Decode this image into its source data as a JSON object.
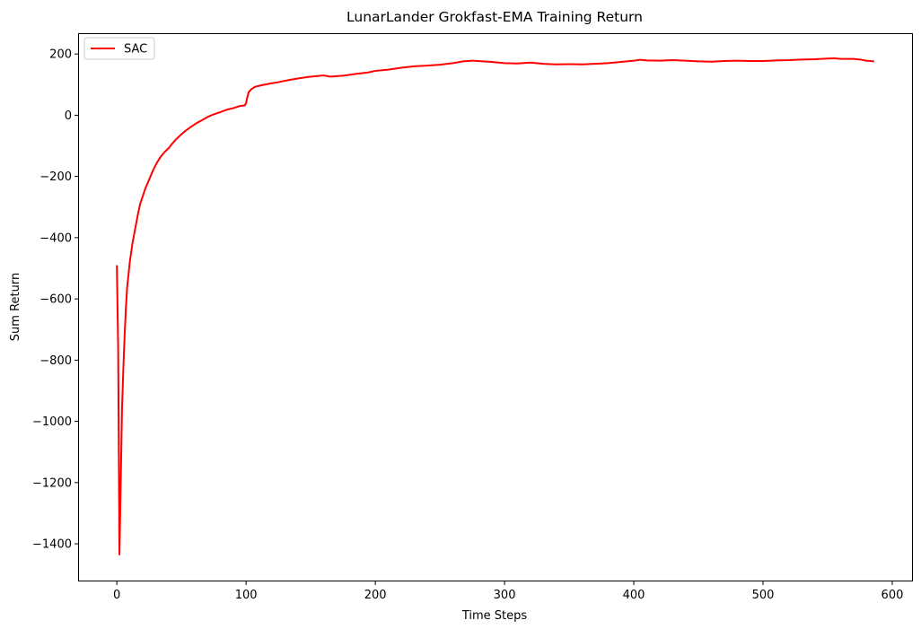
{
  "chart_data": {
    "type": "line",
    "title": "LunarLander Grokfast-EMA Training Return",
    "xlabel": "Time Steps",
    "ylabel": "Sum Return",
    "xlim": [
      -29.3,
      615.3
    ],
    "ylim": [
      -1520,
      265
    ],
    "xticks": [
      0,
      100,
      200,
      300,
      400,
      500,
      600
    ],
    "yticks": [
      -1400,
      -1200,
      -1000,
      -800,
      -600,
      -400,
      -200,
      0,
      200
    ],
    "grid": false,
    "legend": {
      "placement": "top-left"
    },
    "series": [
      {
        "name": "SAC",
        "color": "#ff0000",
        "points": [
          [
            0,
            -490
          ],
          [
            1,
            -760
          ],
          [
            2,
            -1435
          ],
          [
            3,
            -1200
          ],
          [
            4,
            -960
          ],
          [
            5,
            -830
          ],
          [
            6,
            -720
          ],
          [
            7,
            -630
          ],
          [
            8,
            -560
          ],
          [
            10,
            -480
          ],
          [
            12,
            -420
          ],
          [
            14,
            -375
          ],
          [
            16,
            -330
          ],
          [
            18,
            -290
          ],
          [
            20,
            -265
          ],
          [
            22,
            -240
          ],
          [
            25,
            -210
          ],
          [
            28,
            -180
          ],
          [
            31,
            -155
          ],
          [
            34,
            -135
          ],
          [
            37,
            -120
          ],
          [
            40,
            -108
          ],
          [
            43,
            -92
          ],
          [
            46,
            -78
          ],
          [
            50,
            -62
          ],
          [
            54,
            -48
          ],
          [
            58,
            -36
          ],
          [
            62,
            -25
          ],
          [
            66,
            -16
          ],
          [
            70,
            -6
          ],
          [
            75,
            3
          ],
          [
            80,
            10
          ],
          [
            85,
            18
          ],
          [
            90,
            23
          ],
          [
            95,
            30
          ],
          [
            99,
            32
          ],
          [
            100,
            40
          ],
          [
            101,
            60
          ],
          [
            102,
            75
          ],
          [
            104,
            85
          ],
          [
            107,
            93
          ],
          [
            112,
            98
          ],
          [
            118,
            103
          ],
          [
            125,
            108
          ],
          [
            132,
            114
          ],
          [
            140,
            120
          ],
          [
            148,
            125
          ],
          [
            155,
            128
          ],
          [
            160,
            130
          ],
          [
            165,
            126
          ],
          [
            175,
            129
          ],
          [
            185,
            135
          ],
          [
            195,
            140
          ],
          [
            200,
            145
          ],
          [
            210,
            149
          ],
          [
            220,
            155
          ],
          [
            230,
            160
          ],
          [
            240,
            162
          ],
          [
            250,
            165
          ],
          [
            260,
            170
          ],
          [
            268,
            176
          ],
          [
            275,
            178
          ],
          [
            283,
            176
          ],
          [
            290,
            174
          ],
          [
            300,
            170
          ],
          [
            310,
            169
          ],
          [
            320,
            172
          ],
          [
            330,
            168
          ],
          [
            340,
            166
          ],
          [
            350,
            167
          ],
          [
            360,
            166
          ],
          [
            370,
            168
          ],
          [
            380,
            170
          ],
          [
            390,
            174
          ],
          [
            400,
            178
          ],
          [
            405,
            181
          ],
          [
            410,
            179
          ],
          [
            420,
            178
          ],
          [
            430,
            180
          ],
          [
            440,
            178
          ],
          [
            450,
            176
          ],
          [
            460,
            175
          ],
          [
            470,
            177
          ],
          [
            480,
            178
          ],
          [
            490,
            177
          ],
          [
            500,
            177
          ],
          [
            510,
            179
          ],
          [
            520,
            180
          ],
          [
            530,
            182
          ],
          [
            540,
            183
          ],
          [
            550,
            185
          ],
          [
            555,
            186
          ],
          [
            560,
            184
          ],
          [
            570,
            184
          ],
          [
            575,
            182
          ],
          [
            580,
            178
          ],
          [
            586,
            176
          ]
        ]
      }
    ]
  }
}
